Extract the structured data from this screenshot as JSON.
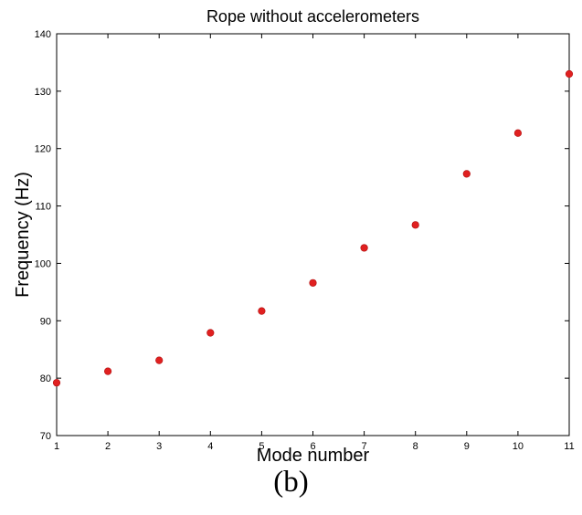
{
  "chart_data": {
    "type": "scatter",
    "title": "Rope without accelerometers",
    "xlabel": "Mode number",
    "ylabel": "Frequency (Hz)",
    "xlim": [
      1,
      11
    ],
    "ylim": [
      70,
      140
    ],
    "xticks": [
      1,
      2,
      3,
      4,
      5,
      6,
      7,
      8,
      9,
      10,
      11
    ],
    "yticks": [
      70,
      80,
      90,
      100,
      110,
      120,
      130,
      140
    ],
    "grid": false,
    "marker_color": "#e02020",
    "series": [
      {
        "x": [
          1,
          2,
          3,
          4,
          5,
          6,
          7,
          8,
          9,
          10,
          11
        ],
        "y": [
          79.2,
          81.2,
          83.1,
          87.9,
          91.7,
          96.6,
          102.7,
          106.7,
          115.6,
          122.7,
          133.0
        ]
      }
    ]
  },
  "caption": "(b)"
}
